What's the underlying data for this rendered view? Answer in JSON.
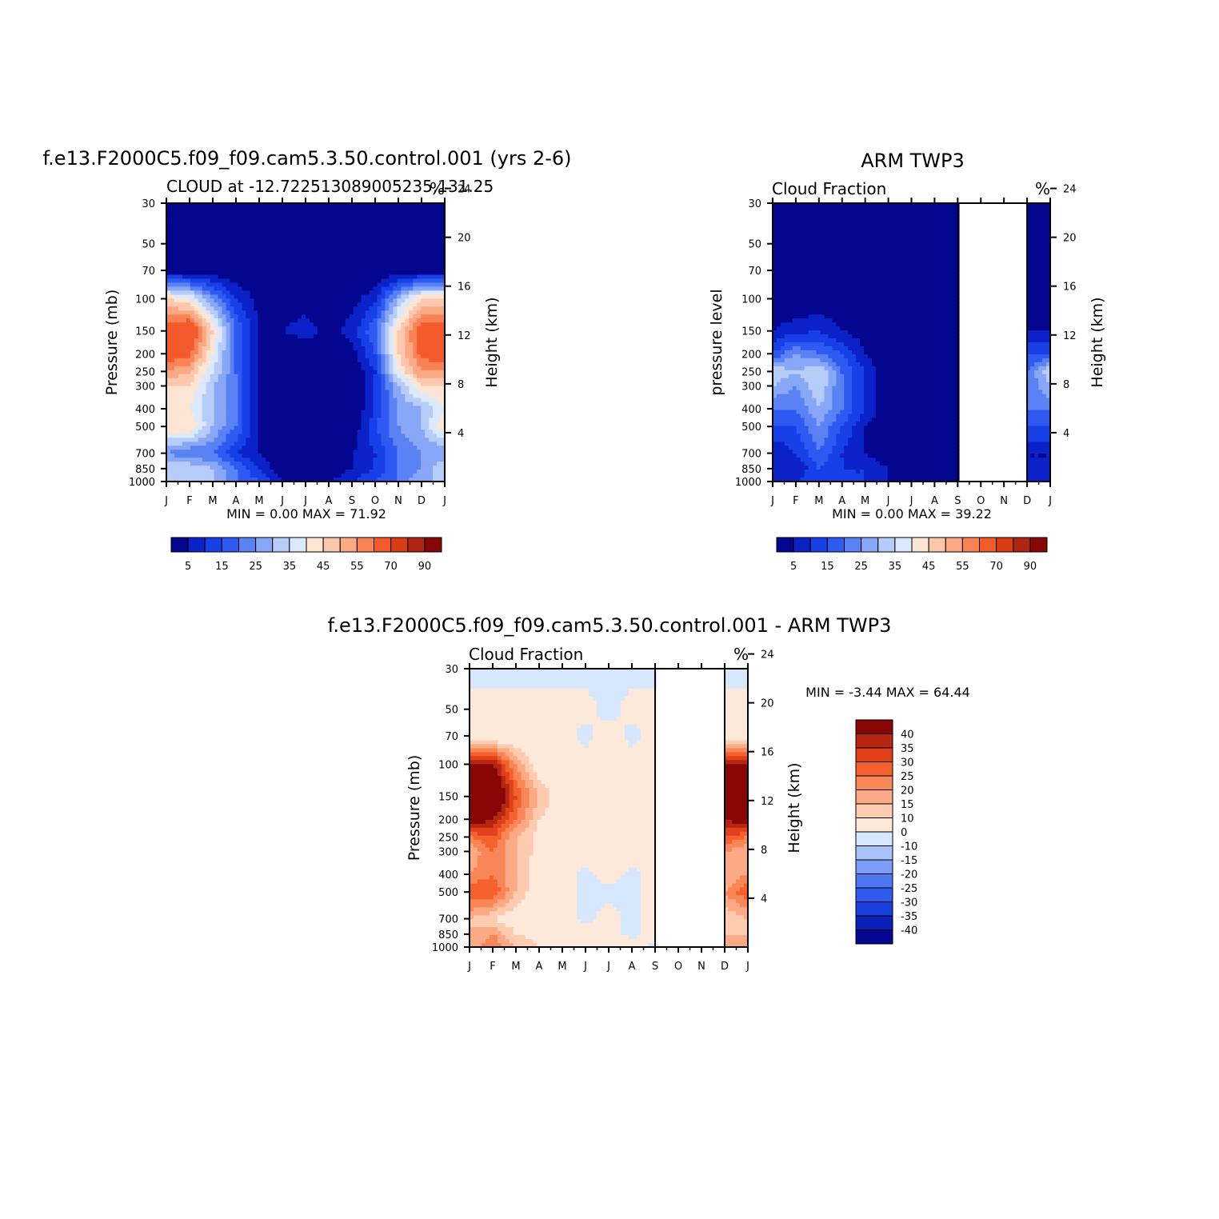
{
  "palette": {
    "sequential": [
      "#05068f",
      "#0a22c8",
      "#1840e8",
      "#2f5af2",
      "#5b82f5",
      "#88a8f7",
      "#b7cdf9",
      "#dce8fb",
      "#fde5d4",
      "#fcc8ad",
      "#fba985",
      "#f98355",
      "#f45a2c",
      "#db3c12",
      "#b02412",
      "#870707"
    ],
    "difference": [
      "#050692",
      "#0a20b8",
      "#1a3edd",
      "#2f5bf0",
      "#4e77f4",
      "#7c9df7",
      "#aac2fa",
      "#d6e6fc",
      "#fde9da",
      "#fccbb0",
      "#fbaa85",
      "#f98657",
      "#f5612e",
      "#e0401a",
      "#b52712",
      "#880606"
    ]
  },
  "months": [
    "J",
    "F",
    "M",
    "A",
    "M",
    "J",
    "J",
    "A",
    "S",
    "O",
    "N",
    "D",
    "J"
  ],
  "pressure_ticks": [
    "30",
    "50",
    "70",
    "100",
    "150",
    "200",
    "250",
    "300",
    "400",
    "500",
    "700",
    "850",
    "1000"
  ],
  "panels": [
    {
      "title": "f.e13.F2000C5.f09_f09.cam5.3.50.control.001 (yrs 2-6)",
      "left_string": "CLOUD at -12.722513089005235,131.25",
      "units": "%",
      "y_label": "Pressure (mb)",
      "right_label": "Height (km)",
      "height_ticks": [
        "24",
        "20",
        "16",
        "12",
        "8",
        "4"
      ],
      "min_max": "MIN =    0.00  MAX =   71.92",
      "colorbar_labels": [
        "5",
        "15",
        "25",
        "35",
        "45",
        "55",
        "70",
        "90"
      ]
    },
    {
      "title": "ARM TWP3",
      "left_string": "Cloud Fraction",
      "units": "%",
      "y_label": "pressure level",
      "right_label": "Height (km)",
      "height_ticks": [
        "24",
        "20",
        "16",
        "12",
        "8",
        "4"
      ],
      "min_max": "MIN =    0.00  MAX =   39.22",
      "colorbar_labels": [
        "5",
        "15",
        "25",
        "35",
        "45",
        "55",
        "70",
        "90"
      ]
    },
    {
      "title": "f.e13.F2000C5.f09_f09.cam5.3.50.control.001 - ARM TWP3",
      "left_string": "Cloud Fraction",
      "units": "%",
      "y_label": "Pressure (mb)",
      "right_label": "Height (km)",
      "height_ticks": [
        "24",
        "20",
        "16",
        "12",
        "8",
        "4"
      ],
      "min_max": "MIN =  -3.44  MAX =   64.44",
      "colorbar_labels": [
        "40",
        "35",
        "30",
        "25",
        "20",
        "15",
        "10",
        "0",
        "-10",
        "-15",
        "-20",
        "-25",
        "-30",
        "-35",
        "-40"
      ]
    }
  ],
  "chart_data": [
    {
      "type": "heatmap",
      "title": "f.e13.F2000C5.f09_f09.cam5.3.50.control.001 (yrs 2-6)",
      "subtitle": "CLOUD at -12.722513089005235,131.25",
      "ylabel": "Pressure (mb)",
      "x": [
        "J",
        "F",
        "M",
        "A",
        "M",
        "J",
        "J",
        "A",
        "S",
        "O",
        "N",
        "D",
        "J"
      ],
      "y": [
        30,
        50,
        70,
        100,
        150,
        200,
        250,
        300,
        400,
        500,
        700,
        850,
        1000
      ],
      "ylim": [
        1000,
        30
      ],
      "y_scale": "log",
      "min": 0.0,
      "max": 71.92,
      "levels": [
        5,
        10,
        15,
        20,
        25,
        30,
        35,
        40,
        45,
        50,
        55,
        60,
        70,
        80,
        90
      ],
      "z": [
        [
          0,
          0,
          0,
          0,
          0,
          0,
          0,
          0,
          0,
          0,
          0,
          0,
          0
        ],
        [
          0,
          0,
          0,
          0,
          0,
          0,
          0,
          0,
          0,
          0,
          0,
          0,
          0
        ],
        [
          1,
          1,
          0,
          0,
          0,
          0,
          0,
          0,
          0,
          0,
          0,
          1,
          1
        ],
        [
          45,
          40,
          25,
          10,
          3,
          2,
          3,
          2,
          3,
          8,
          30,
          45,
          45
        ],
        [
          65,
          70,
          45,
          20,
          5,
          5,
          7,
          3,
          7,
          20,
          45,
          65,
          65
        ],
        [
          65,
          62,
          40,
          18,
          5,
          0,
          2,
          2,
          3,
          15,
          45,
          62,
          65
        ],
        [
          55,
          50,
          35,
          20,
          5,
          0,
          0,
          0,
          0,
          10,
          40,
          55,
          55
        ],
        [
          45,
          45,
          30,
          20,
          5,
          0,
          0,
          0,
          0,
          10,
          30,
          45,
          45
        ],
        [
          40,
          40,
          30,
          20,
          5,
          0,
          0,
          0,
          0,
          10,
          25,
          30,
          40
        ],
        [
          45,
          45,
          30,
          20,
          5,
          0,
          0,
          0,
          0,
          15,
          25,
          30,
          45
        ],
        [
          25,
          20,
          20,
          10,
          5,
          0,
          0,
          0,
          5,
          10,
          20,
          25,
          25
        ],
        [
          35,
          35,
          30,
          20,
          10,
          0,
          0,
          0,
          5,
          10,
          20,
          25,
          35
        ],
        [
          30,
          30,
          30,
          20,
          15,
          5,
          5,
          5,
          10,
          15,
          20,
          30,
          30
        ]
      ]
    },
    {
      "type": "heatmap",
      "title": "ARM TWP3",
      "subtitle": "Cloud Fraction",
      "ylabel": "pressure level",
      "x": [
        "J",
        "F",
        "M",
        "A",
        "M",
        "J",
        "J",
        "A",
        "S",
        "O",
        "N",
        "D",
        "J"
      ],
      "y": [
        30,
        50,
        70,
        100,
        150,
        200,
        250,
        300,
        400,
        500,
        700,
        850,
        1000
      ],
      "ylim": [
        1000,
        30
      ],
      "y_scale": "log",
      "min": 0.0,
      "max": 39.22,
      "levels": [
        5,
        10,
        15,
        20,
        25,
        30,
        35,
        40,
        45,
        50,
        55,
        60,
        70,
        80,
        90
      ],
      "z": [
        [
          0,
          0,
          0,
          0,
          0,
          0,
          0,
          0,
          0,
          null,
          null,
          0,
          0
        ],
        [
          0,
          0,
          0,
          0,
          0,
          0,
          0,
          0,
          0,
          null,
          null,
          0,
          0
        ],
        [
          0,
          0,
          0,
          0,
          0,
          0,
          0,
          0,
          0,
          null,
          null,
          0,
          0
        ],
        [
          0,
          0,
          0,
          0,
          0,
          0,
          0,
          0,
          0,
          null,
          null,
          0,
          0
        ],
        [
          5,
          8,
          10,
          5,
          2,
          0,
          0,
          0,
          0,
          null,
          null,
          5,
          5
        ],
        [
          15,
          25,
          20,
          15,
          5,
          0,
          0,
          0,
          0,
          null,
          null,
          15,
          15
        ],
        [
          35,
          30,
          35,
          20,
          10,
          0,
          0,
          0,
          0,
          null,
          null,
          20,
          35
        ],
        [
          30,
          25,
          35,
          20,
          10,
          0,
          0,
          0,
          0,
          null,
          null,
          20,
          30
        ],
        [
          20,
          20,
          30,
          20,
          10,
          0,
          0,
          0,
          0,
          null,
          null,
          20,
          20
        ],
        [
          15,
          15,
          25,
          15,
          5,
          0,
          0,
          0,
          0,
          null,
          null,
          15,
          15
        ],
        [
          5,
          10,
          20,
          10,
          5,
          0,
          0,
          0,
          0,
          null,
          null,
          5,
          5
        ],
        [
          5,
          5,
          15,
          10,
          10,
          5,
          0,
          0,
          0,
          null,
          null,
          5,
          5
        ],
        [
          10,
          10,
          15,
          10,
          10,
          5,
          0,
          0,
          0,
          null,
          null,
          10,
          10
        ]
      ]
    },
    {
      "type": "heatmap",
      "title": "f.e13.F2000C5.f09_f09.cam5.3.50.control.001 - ARM TWP3",
      "subtitle": "Cloud Fraction",
      "ylabel": "Pressure (mb)",
      "x": [
        "J",
        "F",
        "M",
        "A",
        "M",
        "J",
        "J",
        "A",
        "S",
        "O",
        "N",
        "D",
        "J"
      ],
      "y": [
        30,
        50,
        70,
        100,
        150,
        200,
        250,
        300,
        400,
        500,
        700,
        850,
        1000
      ],
      "ylim": [
        1000,
        30
      ],
      "y_scale": "log",
      "min": -3.44,
      "max": 64.44,
      "levels": [
        -40,
        -35,
        -30,
        -25,
        -20,
        -15,
        -10,
        0,
        10,
        15,
        20,
        25,
        30,
        35,
        40
      ],
      "z": [
        [
          -2,
          -2,
          -2,
          -2,
          -2,
          -2,
          -2,
          -2,
          -2,
          null,
          null,
          -2,
          -2
        ],
        [
          2,
          2,
          2,
          2,
          2,
          2,
          -2,
          2,
          2,
          null,
          null,
          2,
          2
        ],
        [
          3,
          3,
          3,
          3,
          3,
          -2,
          3,
          -2,
          3,
          null,
          null,
          3,
          3
        ],
        [
          40,
          40,
          20,
          5,
          3,
          3,
          3,
          3,
          3,
          null,
          null,
          40,
          40
        ],
        [
          50,
          55,
          30,
          15,
          5,
          5,
          5,
          5,
          5,
          null,
          null,
          55,
          50
        ],
        [
          45,
          40,
          25,
          10,
          5,
          5,
          5,
          5,
          5,
          null,
          null,
          40,
          45
        ],
        [
          25,
          30,
          15,
          8,
          5,
          5,
          5,
          5,
          5,
          null,
          null,
          30,
          25
        ],
        [
          15,
          25,
          15,
          8,
          5,
          5,
          5,
          5,
          5,
          null,
          null,
          20,
          15
        ],
        [
          20,
          25,
          15,
          5,
          3,
          -2,
          3,
          -2,
          3,
          null,
          null,
          15,
          20
        ],
        [
          30,
          30,
          15,
          5,
          3,
          -2,
          -2,
          -2,
          3,
          null,
          null,
          20,
          30
        ],
        [
          15,
          10,
          5,
          3,
          3,
          -2,
          3,
          -2,
          3,
          null,
          null,
          10,
          15
        ],
        [
          15,
          20,
          10,
          8,
          3,
          3,
          3,
          -2,
          3,
          null,
          null,
          15,
          15
        ],
        [
          15,
          25,
          15,
          10,
          5,
          5,
          5,
          5,
          -2,
          null,
          null,
          15,
          15
        ]
      ]
    }
  ]
}
